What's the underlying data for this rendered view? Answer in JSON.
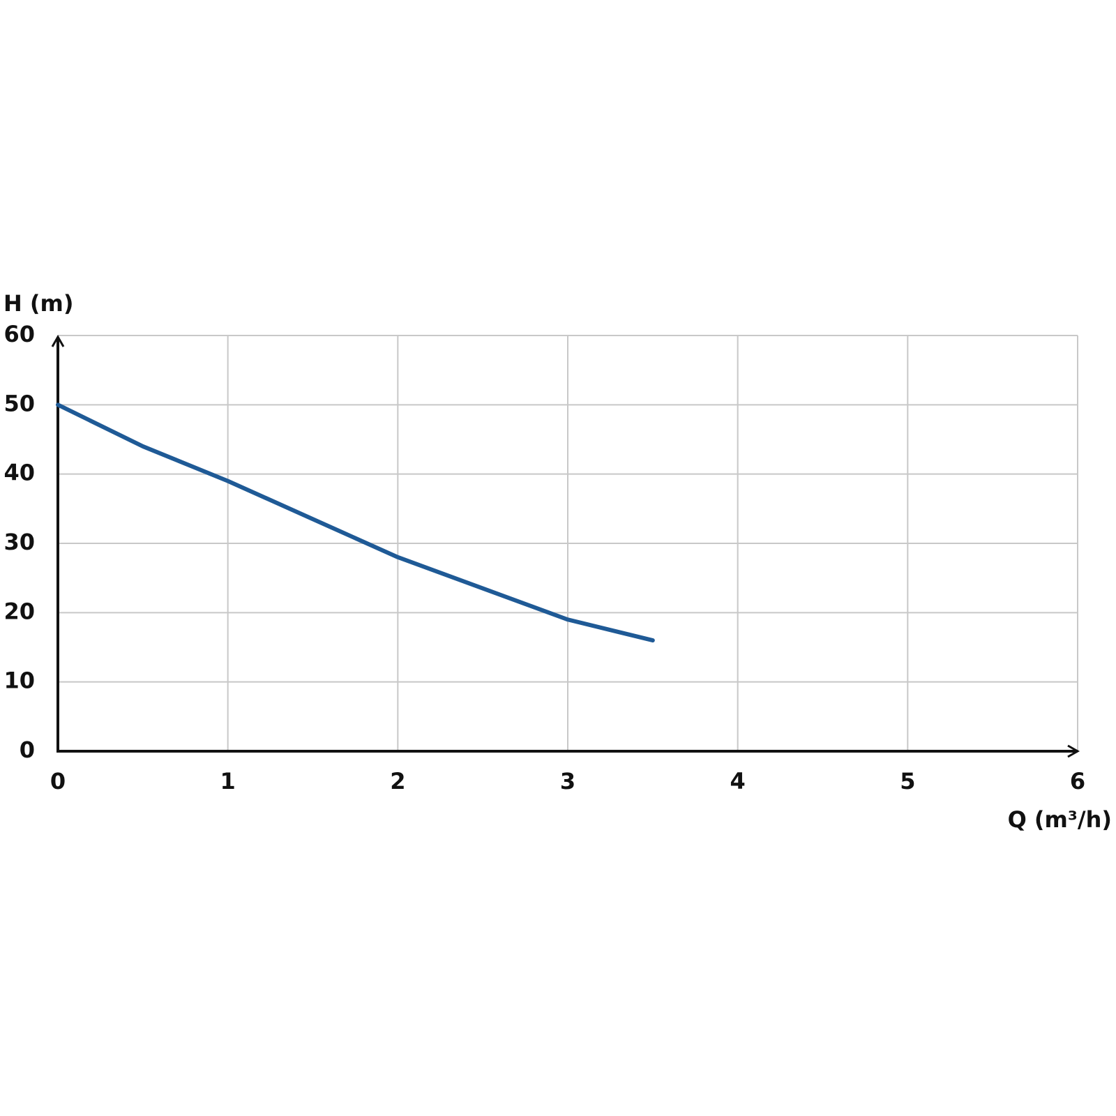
{
  "chart_data": {
    "type": "line",
    "y_label": "H (m)",
    "x_label": "Q (m³/h)",
    "x": [
      0,
      0.5,
      1,
      1.5,
      2,
      2.5,
      3,
      3.5
    ],
    "values": [
      50,
      44,
      39,
      33.5,
      28,
      23.5,
      19,
      16
    ],
    "color": "#1f5a96",
    "xlim": [
      0,
      6
    ],
    "xticks": [
      0,
      1,
      2,
      3,
      4,
      5,
      6
    ],
    "ylim": [
      0,
      60
    ],
    "yticks": [
      0,
      10,
      20,
      30,
      40,
      50,
      60
    ],
    "grid": true
  }
}
